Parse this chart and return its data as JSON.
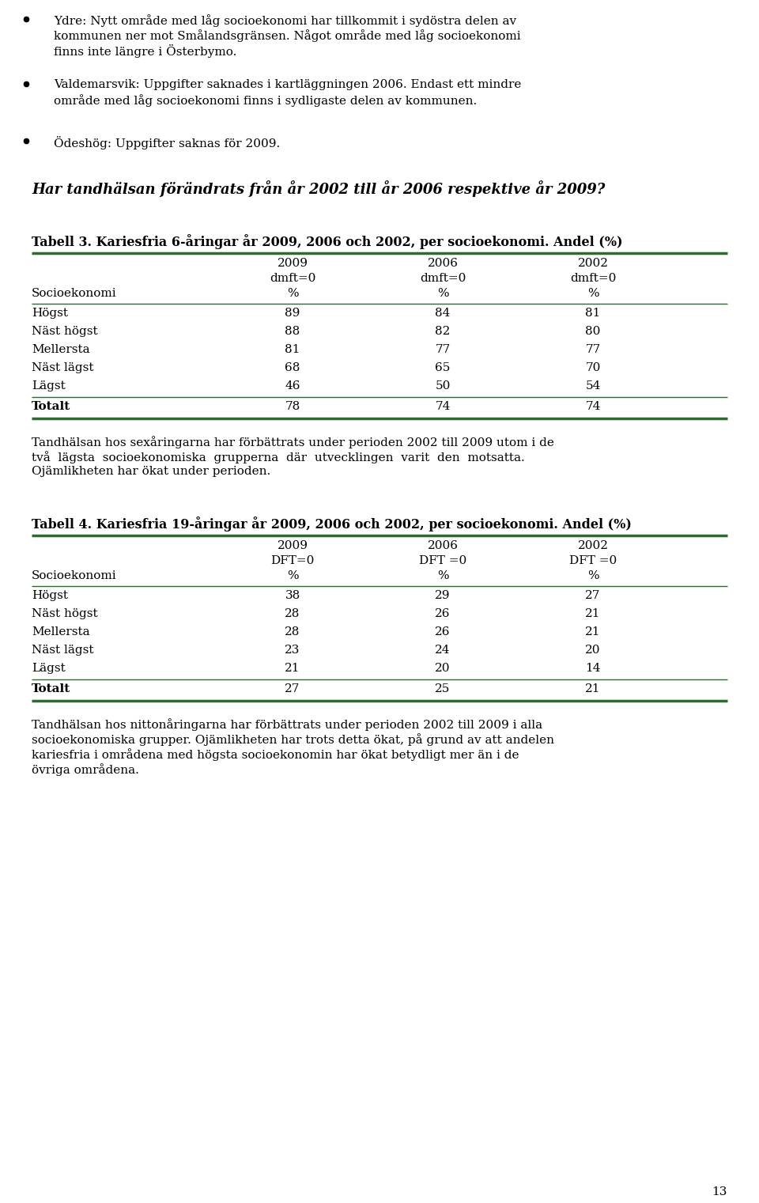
{
  "bg_color": "#ffffff",
  "text_color": "#000000",
  "green_color": "#2d6a2d",
  "page_number": "13",
  "bullet1_line1": "Ydre: Nytt område med låg socioekonomi har tillkommit i sydöstra delen av",
  "bullet1_line2": "kommunen ner mot Smålandsgränsen. Något område med låg socioekonomi",
  "bullet1_line3": "finns inte längre i Österbymo.",
  "bullet2_line1": "Valdemarsvik: Uppgifter saknades i kartläggningen 2006. Endast ett mindre",
  "bullet2_line2": "område med låg socioekonomi finns i sydligaste delen av kommunen.",
  "bullet3_line1": "Ödeshög: Uppgifter saknas för 2009.",
  "section_heading": "Har tandhälsan förändrats från år 2002 till år 2006 respektive år 2009?",
  "table3_title": "Tabell 3. Kariesfria 6-åringar år 2009, 2006 och 2002, per socioekonomi. Andel (%)",
  "table3_rows": [
    [
      "Högst",
      "89",
      "84",
      "81"
    ],
    [
      "Näst högst",
      "88",
      "82",
      "80"
    ],
    [
      "Mellersta",
      "81",
      "77",
      "77"
    ],
    [
      "Näst lägst",
      "68",
      "65",
      "70"
    ],
    [
      "Lägst",
      "46",
      "50",
      "54"
    ],
    [
      "Totalt",
      "78",
      "74",
      "74"
    ]
  ],
  "table3_col1_year": "2009",
  "table3_col1_sub": "dmft=0",
  "table3_col2_year": "2006",
  "table3_col2_sub": "dmft=0",
  "table3_col3_year": "2002",
  "table3_col3_sub": "dmft=0",
  "para1_lines": [
    "Tandhälsan hos sexåringarna har förbättrats under perioden 2002 till 2009 utom i de",
    "två  lägsta  socioekonomiska  grupperna  där  utvecklingen  varit  den  motsatta.",
    "Ojämlikheten har ökat under perioden."
  ],
  "table4_title": "Tabell 4. Kariesfria 19-åringar år 2009, 2006 och 2002, per socioekonomi. Andel (%)",
  "table4_rows": [
    [
      "Högst",
      "38",
      "29",
      "27"
    ],
    [
      "Näst högst",
      "28",
      "26",
      "21"
    ],
    [
      "Mellersta",
      "28",
      "26",
      "21"
    ],
    [
      "Näst lägst",
      "23",
      "24",
      "20"
    ],
    [
      "Lägst",
      "21",
      "20",
      "14"
    ],
    [
      "Totalt",
      "27",
      "25",
      "21"
    ]
  ],
  "table4_col1_year": "2009",
  "table4_col1_sub": "DFT=0",
  "table4_col2_year": "2006",
  "table4_col2_sub": "DFT =0",
  "table4_col3_year": "2002",
  "table4_col3_sub": "DFT =0",
  "para2_lines": [
    "Tandhälsan hos nittonåringarna har förbättrats under perioden 2002 till 2009 i alla",
    "socioekonomiska grupper. Ojämlikheten har trots detta ökat, på grund av att andelen",
    "kariesfria i områdena med högsta socioekonomin har ökat betydligt mer än i de",
    "övriga områdena."
  ]
}
